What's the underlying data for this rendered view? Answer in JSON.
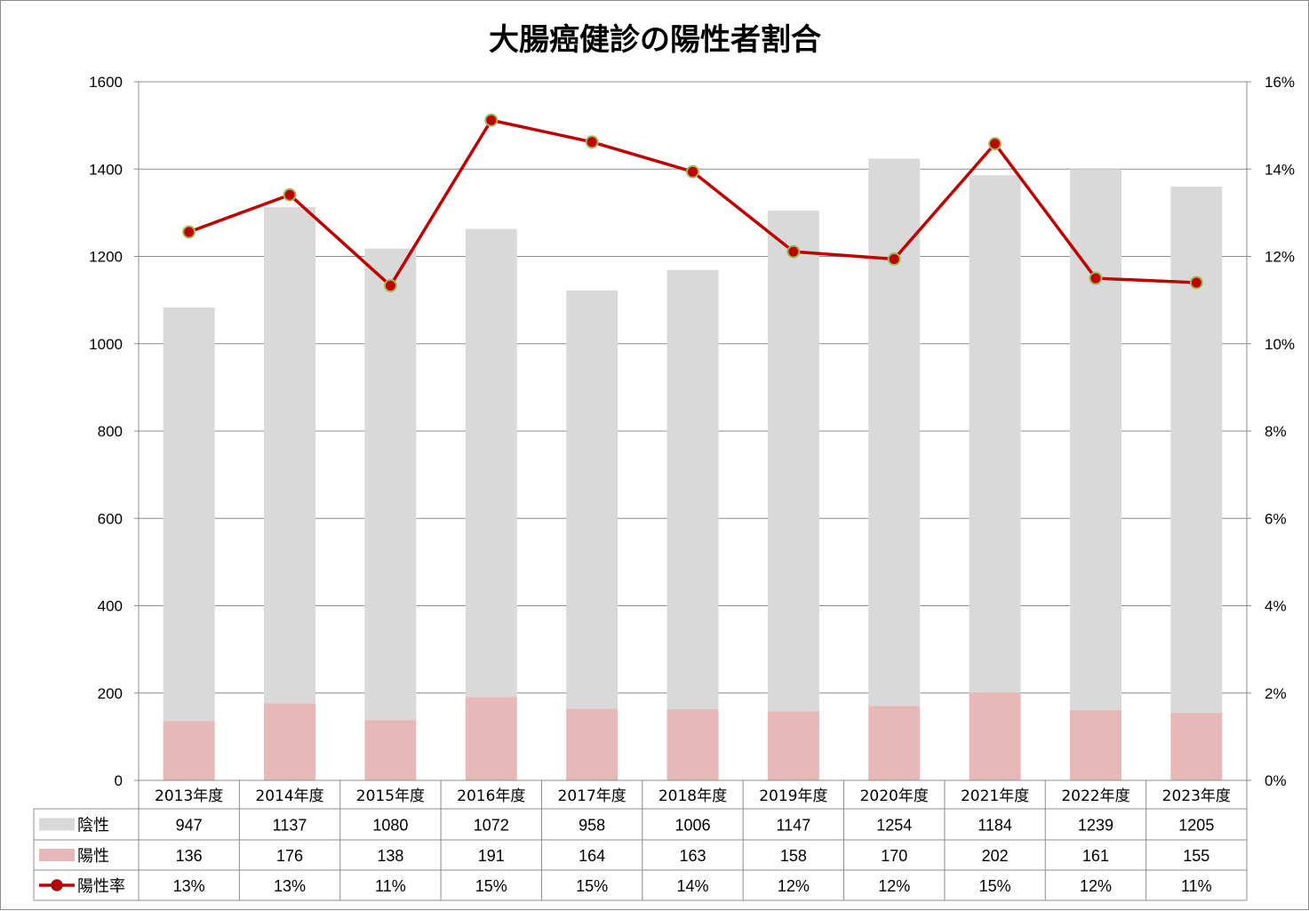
{
  "chart_data": {
    "type": "bar",
    "stacked": true,
    "title": "大腸癌健診の陽性者割合",
    "categories": [
      "2013年度",
      "2014年度",
      "2015年度",
      "2016年度",
      "2017年度",
      "2018年度",
      "2019年度",
      "2020年度",
      "2021年度",
      "2022年度",
      "2023年度"
    ],
    "series": [
      {
        "name": "陰性",
        "type": "bar",
        "axis": "left",
        "color": "#d9d9d9",
        "values": [
          947,
          1137,
          1080,
          1072,
          958,
          1006,
          1147,
          1254,
          1184,
          1239,
          1205
        ]
      },
      {
        "name": "陽性",
        "type": "bar",
        "axis": "left",
        "color": "#e6b8b7",
        "values": [
          136,
          176,
          138,
          191,
          164,
          163,
          158,
          170,
          202,
          161,
          155
        ]
      },
      {
        "name": "陽性率",
        "type": "line",
        "axis": "right",
        "color": "#c00000",
        "marker_color": "#c00000",
        "marker_edge": "#9bbb59",
        "values": [
          0.1256,
          0.1341,
          0.1133,
          0.1512,
          0.1462,
          0.1394,
          0.1211,
          0.1194,
          0.1458,
          0.115,
          0.114
        ],
        "labels": [
          "13%",
          "13%",
          "11%",
          "15%",
          "15%",
          "14%",
          "12%",
          "12%",
          "15%",
          "12%",
          "11%"
        ]
      }
    ],
    "ylim": [
      0,
      1600
    ],
    "yticks": [
      "0",
      "200",
      "400",
      "600",
      "800",
      "1000",
      "1200",
      "1400",
      "1600"
    ],
    "y2lim": [
      0,
      0.16
    ],
    "y2ticks": [
      "0%",
      "2%",
      "4%",
      "6%",
      "8%",
      "10%",
      "12%",
      "14%",
      "16%"
    ],
    "grid": true,
    "legend": "data-table"
  }
}
